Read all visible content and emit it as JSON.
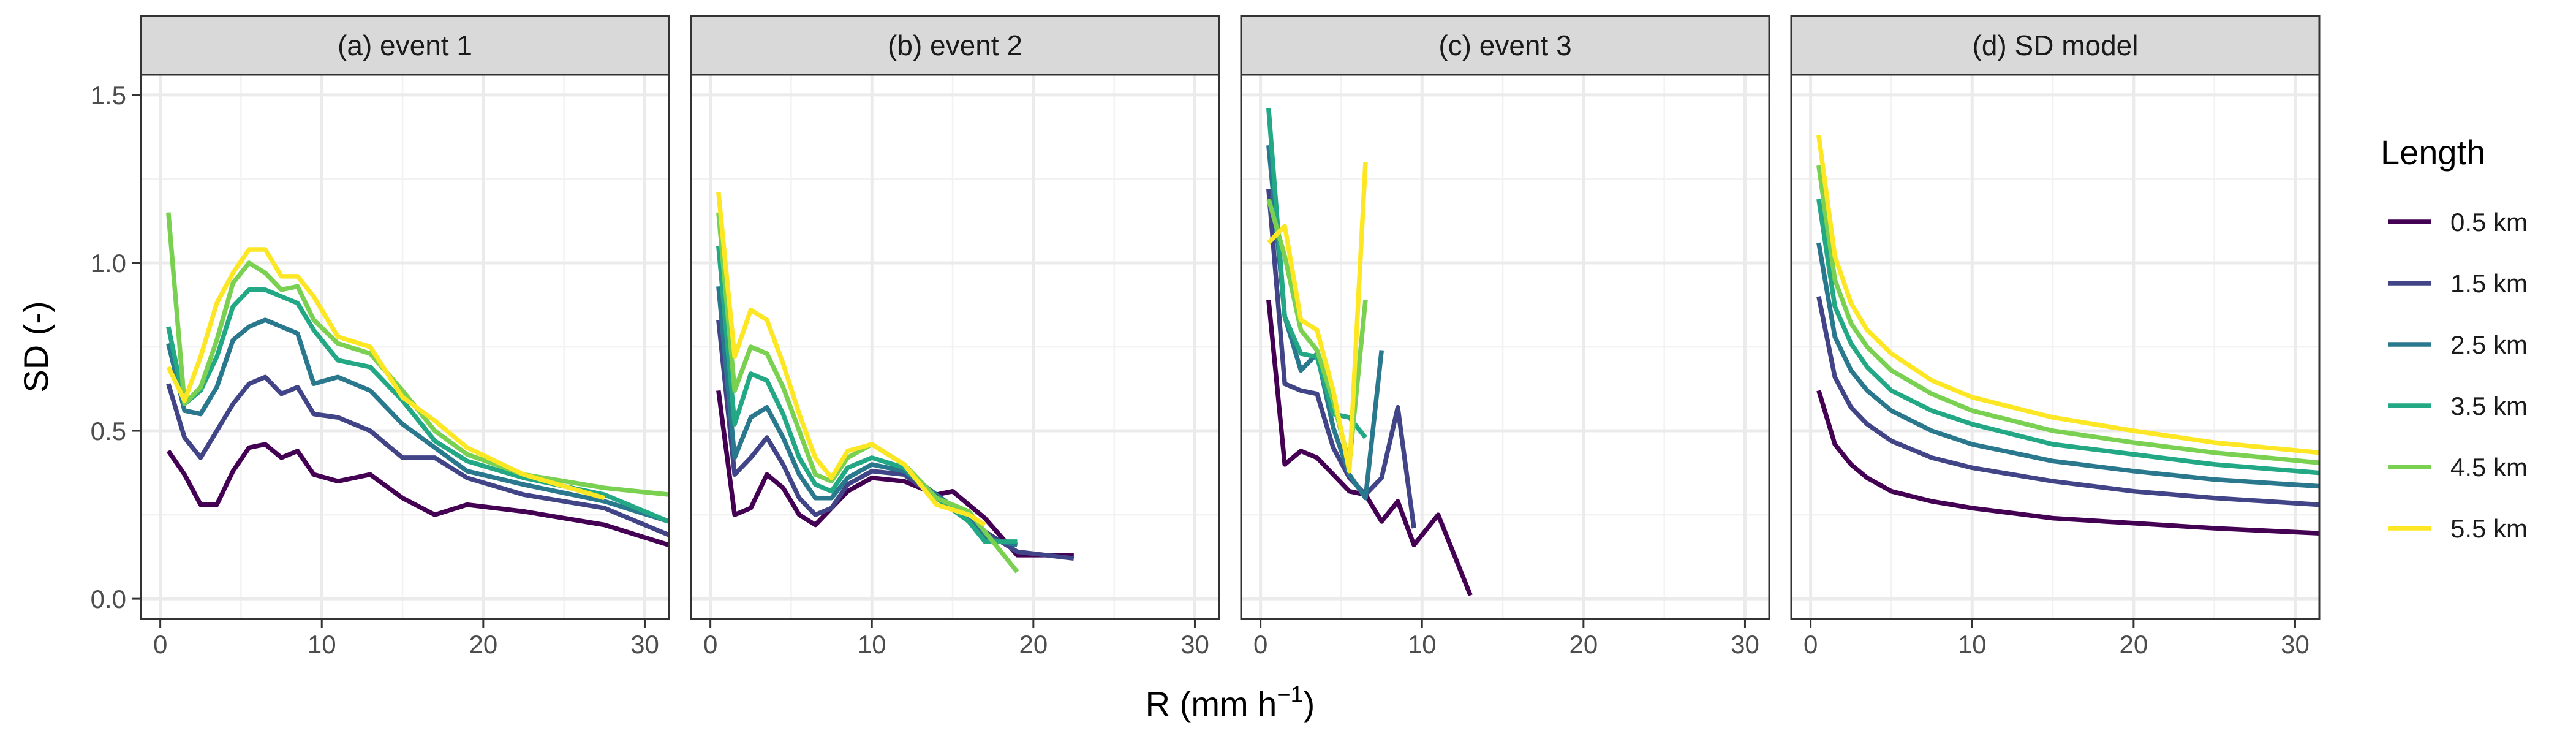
{
  "chart_data": {
    "type": "line",
    "ylabel": "SD (-)",
    "xlabel_main": "R (mm h",
    "xlabel_sup": "−1",
    "xlabel_close": ")",
    "xlim": [
      -1.2,
      31.5
    ],
    "ylim": [
      -0.06,
      1.56
    ],
    "x_ticks": [
      0,
      10,
      20,
      30
    ],
    "y_ticks": [
      0.0,
      0.5,
      1.0,
      1.5
    ],
    "y_tick_labels": [
      "0.0",
      "0.5",
      "1.0",
      "1.5"
    ],
    "grid": true,
    "legend": {
      "title": "Length",
      "position": "right",
      "items": [
        "0.5 km",
        "1.5 km",
        "2.5 km",
        "3.5 km",
        "4.5 km",
        "5.5 km"
      ]
    },
    "colors": {
      "0.5 km": "#440154",
      "1.5 km": "#414487",
      "2.5 km": "#2A788E",
      "3.5 km": "#22A884",
      "4.5 km": "#7AD151",
      "5.5 km": "#FDE725"
    },
    "panels": [
      {
        "title": "(a) event 1",
        "series": [
          {
            "name": "0.5 km",
            "x": [
              0.5,
              1.5,
              2.5,
              3.5,
              4.5,
              5.5,
              6.5,
              7.5,
              8.5,
              9.5,
              11,
              13,
              15,
              17,
              19,
              22.5,
              27.5,
              31.5
            ],
            "y": [
              0.44,
              0.37,
              0.28,
              0.28,
              0.38,
              0.45,
              0.46,
              0.42,
              0.44,
              0.37,
              0.35,
              0.37,
              0.3,
              0.25,
              0.28,
              0.26,
              0.22,
              0.16
            ]
          },
          {
            "name": "1.5 km",
            "x": [
              0.5,
              1.5,
              2.5,
              3.5,
              4.5,
              5.5,
              6.5,
              7.5,
              8.5,
              9.5,
              11,
              13,
              15,
              17,
              19,
              22.5,
              27.5,
              31.5
            ],
            "y": [
              0.64,
              0.48,
              0.42,
              0.5,
              0.58,
              0.64,
              0.66,
              0.61,
              0.63,
              0.55,
              0.54,
              0.5,
              0.42,
              0.42,
              0.36,
              0.31,
              0.27,
              0.19
            ]
          },
          {
            "name": "2.5 km",
            "x": [
              0.5,
              1.5,
              2.5,
              3.5,
              4.5,
              5.5,
              6.5,
              7.5,
              8.5,
              9.5,
              11,
              13,
              15,
              17,
              19,
              22.5,
              27.5,
              31.5
            ],
            "y": [
              0.76,
              0.56,
              0.55,
              0.63,
              0.77,
              0.81,
              0.83,
              0.81,
              0.79,
              0.64,
              0.66,
              0.62,
              0.52,
              0.45,
              0.38,
              0.34,
              0.29,
              0.23
            ]
          },
          {
            "name": "3.5 km",
            "x": [
              0.5,
              1.5,
              2.5,
              3.5,
              4.5,
              5.5,
              6.5,
              7.5,
              8.5,
              9.5,
              11,
              13,
              15,
              17,
              19,
              22.5,
              27.5,
              31.5
            ],
            "y": [
              0.81,
              0.58,
              0.62,
              0.72,
              0.87,
              0.92,
              0.92,
              0.9,
              0.88,
              0.8,
              0.71,
              0.69,
              0.59,
              0.47,
              0.41,
              0.36,
              0.31,
              0.23
            ]
          },
          {
            "name": "4.5 km",
            "x": [
              0.5,
              1.5,
              2.5,
              3.5,
              4.5,
              5.5,
              6.5,
              7.5,
              8.5,
              9.5,
              11,
              13,
              15,
              17,
              19,
              22.5,
              27.5,
              31.5
            ],
            "y": [
              1.15,
              0.58,
              0.63,
              0.77,
              0.94,
              1.0,
              0.97,
              0.92,
              0.93,
              0.83,
              0.76,
              0.73,
              0.62,
              0.5,
              0.43,
              0.37,
              0.33,
              0.31
            ]
          },
          {
            "name": "5.5 km",
            "x": [
              0.5,
              1.5,
              2.5,
              3.5,
              4.5,
              5.5,
              6.5,
              7.5,
              8.5,
              9.5,
              11,
              13,
              15,
              17,
              19,
              22.5,
              27.5
            ],
            "y": [
              0.69,
              0.59,
              0.72,
              0.88,
              0.97,
              1.04,
              1.04,
              0.96,
              0.96,
              0.9,
              0.78,
              0.75,
              0.6,
              0.53,
              0.45,
              0.37,
              0.3
            ]
          }
        ]
      },
      {
        "title": "(b) event 2",
        "series": [
          {
            "name": "0.5 km",
            "x": [
              0.5,
              1.5,
              2.5,
              3.5,
              4.5,
              5.5,
              6.5,
              7.5,
              8.5,
              10,
              12,
              14,
              15,
              17,
              19,
              22.5
            ],
            "y": [
              0.62,
              0.25,
              0.27,
              0.37,
              0.33,
              0.25,
              0.22,
              0.27,
              0.32,
              0.36,
              0.35,
              0.31,
              0.32,
              0.24,
              0.13,
              0.13
            ]
          },
          {
            "name": "1.5 km",
            "x": [
              0.5,
              1.5,
              2.5,
              3.5,
              4.5,
              5.5,
              6.5,
              7.5,
              8.5,
              10,
              12,
              14,
              16,
              17,
              19,
              22.5
            ],
            "y": [
              0.83,
              0.37,
              0.42,
              0.48,
              0.4,
              0.3,
              0.25,
              0.27,
              0.34,
              0.38,
              0.37,
              0.3,
              0.25,
              0.2,
              0.14,
              0.12
            ]
          },
          {
            "name": "2.5 km",
            "x": [
              0.5,
              1.5,
              2.5,
              3.5,
              4.5,
              5.5,
              6.5,
              7.5,
              8.5,
              10,
              12,
              14,
              16,
              17,
              19
            ],
            "y": [
              0.93,
              0.42,
              0.54,
              0.57,
              0.48,
              0.37,
              0.3,
              0.3,
              0.36,
              0.4,
              0.38,
              0.31,
              0.24,
              0.18,
              0.16
            ]
          },
          {
            "name": "3.5 km",
            "x": [
              0.5,
              1.5,
              2.5,
              3.5,
              4.5,
              5.5,
              6.5,
              7.5,
              8.5,
              10,
              12,
              14,
              16,
              17,
              19
            ],
            "y": [
              1.05,
              0.52,
              0.67,
              0.65,
              0.55,
              0.42,
              0.34,
              0.32,
              0.39,
              0.42,
              0.39,
              0.3,
              0.23,
              0.17,
              0.17
            ]
          },
          {
            "name": "4.5 km",
            "x": [
              0.5,
              1.5,
              2.5,
              3.5,
              4.5,
              5.5,
              6.5,
              7.5,
              8.5,
              10,
              12,
              14,
              16,
              17,
              19
            ],
            "y": [
              1.15,
              0.62,
              0.75,
              0.73,
              0.63,
              0.5,
              0.37,
              0.35,
              0.42,
              0.46,
              0.4,
              0.3,
              0.26,
              0.2,
              0.08
            ]
          },
          {
            "name": "5.5 km",
            "x": [
              0.5,
              1.5,
              2.5,
              3.5,
              4.5,
              5.5,
              6.5,
              7.5,
              8.5,
              10,
              12,
              14,
              16,
              17
            ],
            "y": [
              1.21,
              0.72,
              0.86,
              0.83,
              0.7,
              0.55,
              0.42,
              0.36,
              0.44,
              0.46,
              0.4,
              0.28,
              0.25,
              0.22
            ]
          }
        ]
      },
      {
        "title": "(c) event 3",
        "series": [
          {
            "name": "0.5 km",
            "x": [
              0.5,
              1.5,
              2.5,
              3.5,
              4.5,
              5.5,
              6.5,
              7.5,
              8.5,
              9.5,
              11,
              13
            ],
            "y": [
              0.89,
              0.4,
              0.44,
              0.42,
              0.37,
              0.32,
              0.31,
              0.23,
              0.29,
              0.16,
              0.25,
              0.01
            ]
          },
          {
            "name": "1.5 km",
            "x": [
              0.5,
              1.5,
              2.5,
              3.5,
              4.5,
              5.5,
              6.5,
              7.5,
              8.5,
              9.5
            ],
            "y": [
              1.22,
              0.64,
              0.62,
              0.61,
              0.45,
              0.36,
              0.31,
              0.36,
              0.57,
              0.21
            ]
          },
          {
            "name": "2.5 km",
            "x": [
              0.5,
              1.5,
              2.5,
              3.5,
              4.5,
              5.5,
              6.5,
              7.5
            ],
            "y": [
              1.35,
              0.84,
              0.68,
              0.73,
              0.51,
              0.37,
              0.3,
              0.74
            ]
          },
          {
            "name": "3.5 km",
            "x": [
              0.5,
              1.5,
              2.5,
              3.5,
              4.5,
              5.5,
              6.5
            ],
            "y": [
              1.46,
              0.84,
              0.73,
              0.72,
              0.55,
              0.54,
              0.48
            ]
          },
          {
            "name": "4.5 km",
            "x": [
              0.5,
              1.5,
              2.5,
              3.5,
              4.5,
              5.5,
              6.5
            ],
            "y": [
              1.19,
              1.02,
              0.8,
              0.74,
              0.59,
              0.4,
              0.89
            ]
          },
          {
            "name": "5.5 km",
            "x": [
              0.5,
              1.5,
              2.5,
              3.5,
              4.5,
              5.5,
              6.5
            ],
            "y": [
              1.06,
              1.11,
              0.83,
              0.8,
              0.62,
              0.38,
              1.3
            ]
          }
        ]
      },
      {
        "title": "(d) SD model",
        "series": [
          {
            "name": "0.5 km",
            "x": [
              0.5,
              1.5,
              2.5,
              3.5,
              5,
              7.5,
              10,
              15,
              20,
              25,
              31.5
            ],
            "y": [
              0.62,
              0.46,
              0.4,
              0.36,
              0.32,
              0.29,
              0.27,
              0.24,
              0.225,
              0.21,
              0.195
            ]
          },
          {
            "name": "1.5 km",
            "x": [
              0.5,
              1.5,
              2.5,
              3.5,
              5,
              7.5,
              10,
              15,
              20,
              25,
              31.5
            ],
            "y": [
              0.9,
              0.66,
              0.57,
              0.52,
              0.47,
              0.42,
              0.39,
              0.35,
              0.32,
              0.3,
              0.28
            ]
          },
          {
            "name": "2.5 km",
            "x": [
              0.5,
              1.5,
              2.5,
              3.5,
              5,
              7.5,
              10,
              15,
              20,
              25,
              31.5
            ],
            "y": [
              1.06,
              0.78,
              0.68,
              0.62,
              0.56,
              0.5,
              0.46,
              0.41,
              0.38,
              0.355,
              0.335
            ]
          },
          {
            "name": "3.5 km",
            "x": [
              0.5,
              1.5,
              2.5,
              3.5,
              5,
              7.5,
              10,
              15,
              20,
              25,
              31.5
            ],
            "y": [
              1.19,
              0.87,
              0.76,
              0.69,
              0.62,
              0.56,
              0.52,
              0.46,
              0.43,
              0.4,
              0.375
            ]
          },
          {
            "name": "4.5 km",
            "x": [
              0.5,
              1.5,
              2.5,
              3.5,
              5,
              7.5,
              10,
              15,
              20,
              25,
              31.5
            ],
            "y": [
              1.29,
              0.95,
              0.82,
              0.75,
              0.68,
              0.61,
              0.56,
              0.5,
              0.465,
              0.435,
              0.405
            ]
          },
          {
            "name": "5.5 km",
            "x": [
              0.5,
              1.5,
              2.5,
              3.5,
              5,
              7.5,
              10,
              15,
              20,
              25,
              31.5
            ],
            "y": [
              1.38,
              1.02,
              0.88,
              0.8,
              0.73,
              0.65,
              0.6,
              0.54,
              0.5,
              0.465,
              0.435
            ]
          }
        ]
      }
    ]
  }
}
